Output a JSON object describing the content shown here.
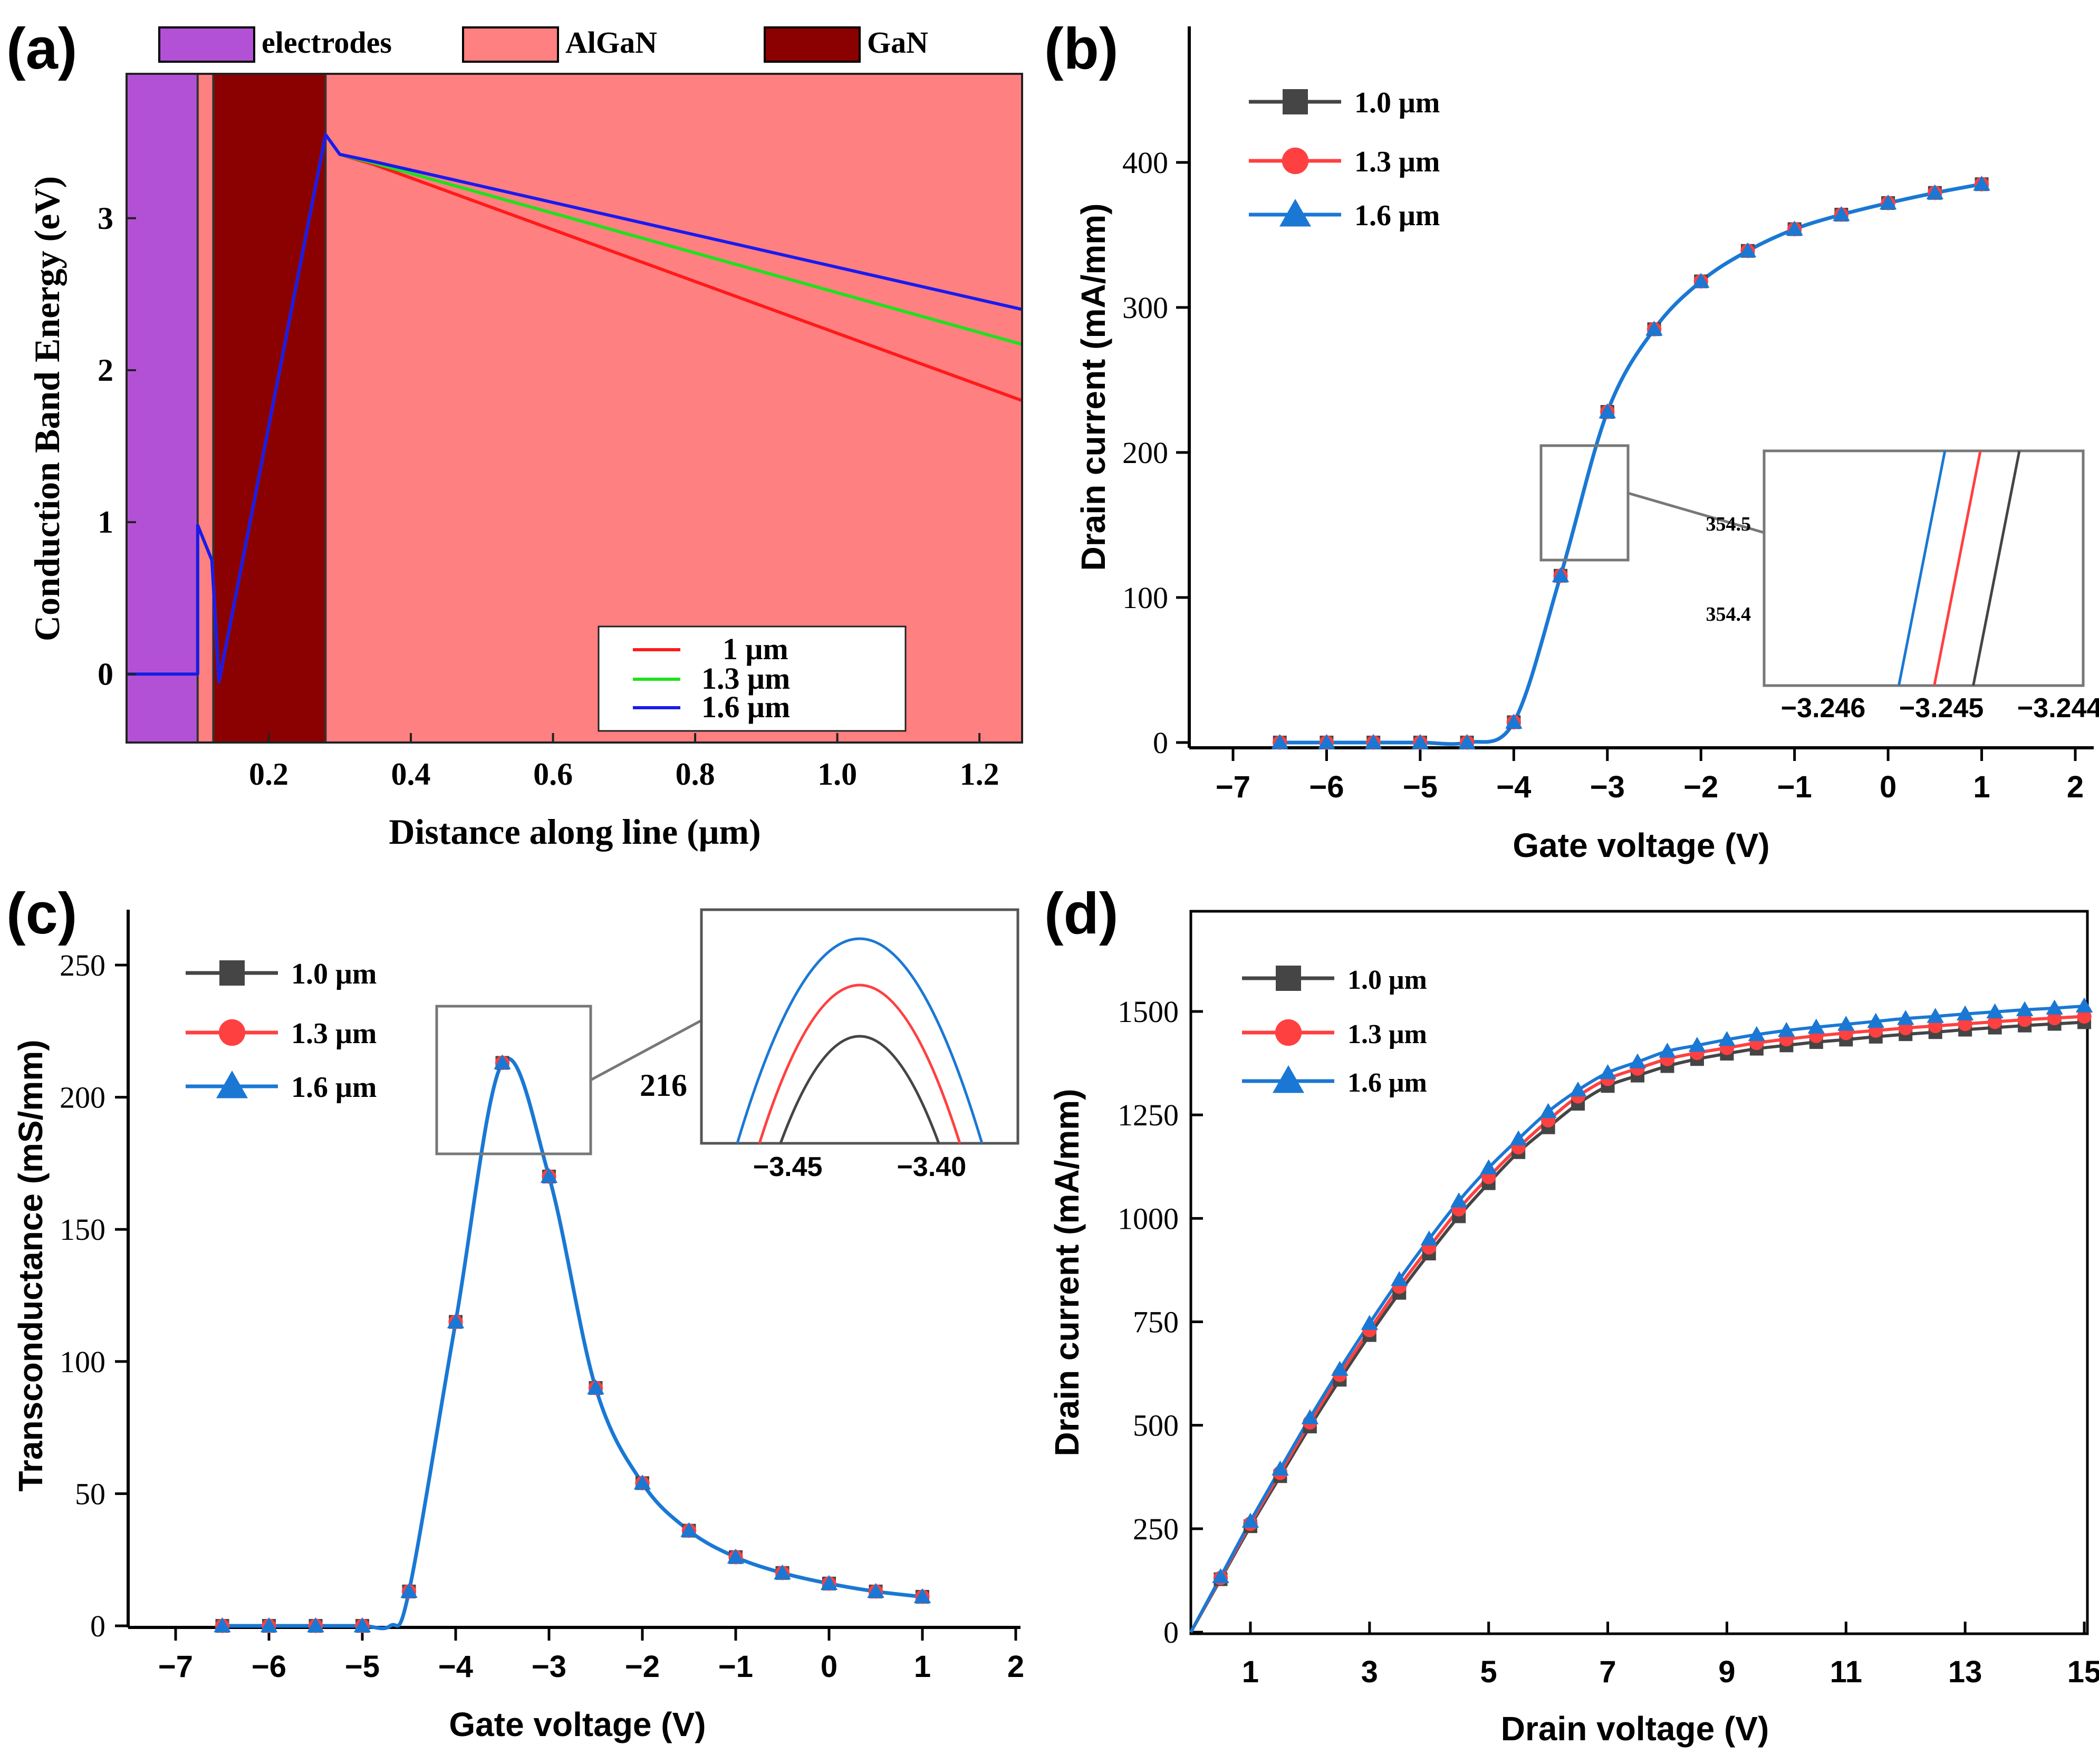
{
  "colors": {
    "electrodes": "#b351d6",
    "algan": "#ff8080",
    "gan": "#8b0000",
    "red": "#ff1a1a",
    "green": "#1fe01f",
    "blue": "#1a1aee",
    "s10": "#454545",
    "s13": "#ff4040",
    "s16": "#1a78d4"
  },
  "chart_data": [
    {
      "panel": "(a)",
      "type": "line",
      "xlabel": "Distance along line (μm)",
      "ylabel": "Conduction Band Energy (eV)",
      "xlim": [
        0,
        1.26
      ],
      "ylim": [
        -0.45,
        3.95
      ],
      "xticks": [
        0.2,
        0.4,
        0.6,
        0.8,
        1.0,
        1.2
      ],
      "xtick_labels": [
        "0.2",
        "0.4",
        "0.6",
        "0.8",
        "1.0",
        "1.2"
      ],
      "yticks": [
        0,
        1,
        2,
        3
      ],
      "ytick_labels": [
        "0",
        "1",
        "2",
        "3"
      ],
      "regions": [
        {
          "name": "electrodes",
          "from": 0,
          "to": 0.1,
          "color": "#b351d6"
        },
        {
          "name": "AlGaN",
          "from": 0.1,
          "to": 0.122,
          "color": "#ff8080"
        },
        {
          "name": "GaN",
          "from": 0.122,
          "to": 0.28,
          "color": "#8b0000"
        },
        {
          "name": "AlGaN",
          "from": 0.28,
          "to": 1.26,
          "color": "#ff8080"
        }
      ],
      "region_legend": [
        "electrodes",
        "AlGaN",
        "GaN"
      ],
      "series": [
        {
          "name": "1 μm",
          "color": "#ff1a1a",
          "x": [
            0,
            0.1,
            0.1,
            0.12,
            0.13,
            0.28,
            0.3,
            0.35,
            1.26
          ],
          "y": [
            0,
            0,
            0.98,
            0.75,
            -0.05,
            3.55,
            3.42,
            3.35,
            1.8
          ]
        },
        {
          "name": "1.3 μm",
          "color": "#1fe01f",
          "x": [
            0,
            0.1,
            0.1,
            0.12,
            0.13,
            0.28,
            0.3,
            0.35,
            1.26
          ],
          "y": [
            0,
            0,
            0.98,
            0.75,
            -0.05,
            3.55,
            3.42,
            3.36,
            2.17
          ]
        },
        {
          "name": "1.6 μm",
          "color": "#1a1aee",
          "x": [
            0,
            0.1,
            0.1,
            0.12,
            0.13,
            0.28,
            0.3,
            0.35,
            1.26
          ],
          "y": [
            0,
            0,
            0.98,
            0.75,
            -0.05,
            3.55,
            3.42,
            3.37,
            2.4
          ]
        }
      ],
      "legend_placement": "bottom-right"
    },
    {
      "panel": "(b)",
      "type": "line",
      "xlabel": "Gate voltage (V)",
      "ylabel": "Drain current (mA/mm)",
      "xlim": [
        -7.5,
        2
      ],
      "ylim": [
        0,
        470
      ],
      "xticks": [
        -7,
        -6,
        -5,
        -4,
        -3,
        -2,
        -1,
        0,
        1,
        2
      ],
      "xtick_labels": [
        "−7",
        "−6",
        "−5",
        "−4",
        "−3",
        "−2",
        "−1",
        "0",
        "1",
        "2"
      ],
      "yticks": [
        0,
        100,
        200,
        300,
        400
      ],
      "ytick_labels": [
        "0",
        "100",
        "200",
        "300",
        "400"
      ],
      "x": [
        -6.5,
        -6,
        -5.5,
        -5,
        -4.5,
        -4,
        -3.5,
        -3,
        -2.5,
        -2,
        -1.5,
        -1,
        -0.5,
        0,
        0.5,
        1
      ],
      "series": [
        {
          "name": "1.0 μm",
          "marker": "square",
          "color": "#454545",
          "values": [
            0,
            0,
            0,
            0,
            0,
            14,
            115,
            228,
            285,
            318,
            339,
            354,
            364,
            372,
            379,
            385
          ]
        },
        {
          "name": "1.3 μm",
          "marker": "circle",
          "color": "#ff4040",
          "values": [
            0,
            0,
            0,
            0,
            0,
            14,
            115,
            228,
            285,
            318,
            339,
            354,
            364,
            372,
            379,
            385
          ]
        },
        {
          "name": "1.6 μm",
          "marker": "triangle",
          "color": "#1a78d4",
          "values": [
            0,
            0,
            0,
            0,
            0,
            14,
            115,
            228,
            285,
            318,
            339,
            354,
            364,
            372,
            379,
            385
          ]
        }
      ],
      "legend_placement": "top-left",
      "inset": {
        "xlim": [
          -3.2465,
          -3.2438
        ],
        "ylim": [
          354.32,
          354.58
        ],
        "xticks": [
          -3.246,
          -3.245,
          -3.244
        ],
        "xtick_labels": [
          "−3.246",
          "−3.245",
          "−3.244"
        ],
        "yticks": [
          354.4,
          354.5
        ],
        "ytick_labels": [
          "354.4",
          "354.5"
        ],
        "lines": [
          {
            "name": "1.6 μm",
            "x": [
              -3.24536,
              -3.24497
            ],
            "y": [
              354.32,
              354.58
            ]
          },
          {
            "name": "1.3 μm",
            "x": [
              -3.24506,
              -3.24467
            ],
            "y": [
              354.32,
              354.58
            ]
          },
          {
            "name": "1.0 μm",
            "x": [
              -3.24473,
              -3.24434
            ],
            "y": [
              354.32,
              354.58
            ]
          }
        ]
      }
    },
    {
      "panel": "(c)",
      "type": "line",
      "xlabel": "Gate voltage (V)",
      "ylabel": "Transconductance (mS/mm)",
      "xlim": [
        -7.5,
        2
      ],
      "ylim": [
        0,
        268
      ],
      "xticks": [
        -7,
        -6,
        -5,
        -4,
        -3,
        -2,
        -1,
        0,
        1,
        2
      ],
      "xtick_labels": [
        "−7",
        "−6",
        "−5",
        "−4",
        "−3",
        "−2",
        "−1",
        "0",
        "1",
        "2"
      ],
      "yticks": [
        0,
        50,
        100,
        150,
        200,
        250
      ],
      "ytick_labels": [
        "0",
        "50",
        "100",
        "150",
        "200",
        "250"
      ],
      "x": [
        -6.5,
        -6,
        -5.5,
        -5,
        -4.5,
        -4,
        -3.5,
        -3,
        -2.5,
        -2,
        -1.5,
        -1,
        -0.5,
        0,
        0.5,
        1
      ],
      "series": [
        {
          "name": "1.0 μm",
          "marker": "square",
          "color": "#454545",
          "values": [
            0,
            0,
            0,
            0,
            13,
            115,
            213,
            170,
            90,
            54,
            36,
            26,
            20,
            16,
            13,
            11
          ]
        },
        {
          "name": "1.3 μm",
          "marker": "circle",
          "color": "#ff4040",
          "values": [
            0,
            0,
            0,
            0,
            13,
            115,
            213,
            170,
            90,
            54,
            36,
            26,
            20,
            16,
            13,
            11
          ]
        },
        {
          "name": "1.6 μm",
          "marker": "triangle",
          "color": "#1a78d4",
          "values": [
            0,
            0,
            0,
            0,
            13,
            115,
            213,
            170,
            90,
            54,
            36,
            26,
            20,
            16,
            13,
            11
          ]
        }
      ],
      "legend_placement": "top-left",
      "inset": {
        "label": "216",
        "xlim": [
          -3.48,
          -3.37
        ],
        "xticks": [
          -3.45,
          -3.4
        ],
        "xtick_labels": [
          "−3.45",
          "−3.40"
        ]
      }
    },
    {
      "panel": "(d)",
      "type": "line",
      "xlabel": "Drain voltage (V)",
      "ylabel": "Drain current (mA/mm)",
      "xlim": [
        0,
        16
      ],
      "ylim": [
        0,
        1700
      ],
      "xticks": [
        1,
        3,
        5,
        7,
        9,
        11,
        13,
        15
      ],
      "xtick_labels": [
        "1",
        "3",
        "5",
        "7",
        "9",
        "11",
        "13",
        "15"
      ],
      "yticks": [
        0,
        250,
        500,
        750,
        1000,
        1250,
        1500
      ],
      "ytick_labels": [
        "0",
        "250",
        "500",
        "750",
        "1000",
        "1250",
        "1500"
      ],
      "x": [
        0,
        0.5,
        1,
        1.5,
        2,
        2.5,
        3,
        3.5,
        4,
        4.5,
        5,
        5.5,
        6,
        6.5,
        7,
        7.5,
        8,
        8.5,
        9,
        9.5,
        10,
        10.5,
        11,
        11.5,
        12,
        12.5,
        13,
        13.5,
        14,
        14.5,
        15
      ],
      "series": [
        {
          "name": "1.0 μm",
          "marker": "square",
          "color": "#454545",
          "values": [
            0,
            128,
            256,
            377,
            497,
            610,
            718,
            820,
            915,
            1005,
            1085,
            1160,
            1220,
            1277,
            1320,
            1345,
            1368,
            1385,
            1398,
            1410,
            1418,
            1426,
            1432,
            1439,
            1445,
            1450,
            1456,
            1461,
            1466,
            1470,
            1474
          ]
        },
        {
          "name": "1.3 μm",
          "marker": "circle",
          "color": "#ff4040",
          "values": [
            0,
            131,
            262,
            385,
            507,
            622,
            730,
            835,
            930,
            1022,
            1100,
            1172,
            1237,
            1295,
            1337,
            1362,
            1385,
            1400,
            1412,
            1424,
            1433,
            1441,
            1448,
            1454,
            1460,
            1465,
            1470,
            1475,
            1480,
            1484,
            1488
          ]
        },
        {
          "name": "1.6 μm",
          "marker": "triangle",
          "color": "#1a78d4",
          "values": [
            0,
            134,
            268,
            394,
            518,
            635,
            746,
            852,
            950,
            1042,
            1122,
            1192,
            1258,
            1310,
            1352,
            1378,
            1404,
            1418,
            1432,
            1444,
            1454,
            1462,
            1469,
            1476,
            1483,
            1488,
            1494,
            1499,
            1504,
            1508,
            1513
          ]
        }
      ],
      "legend_placement": "top-left"
    }
  ]
}
